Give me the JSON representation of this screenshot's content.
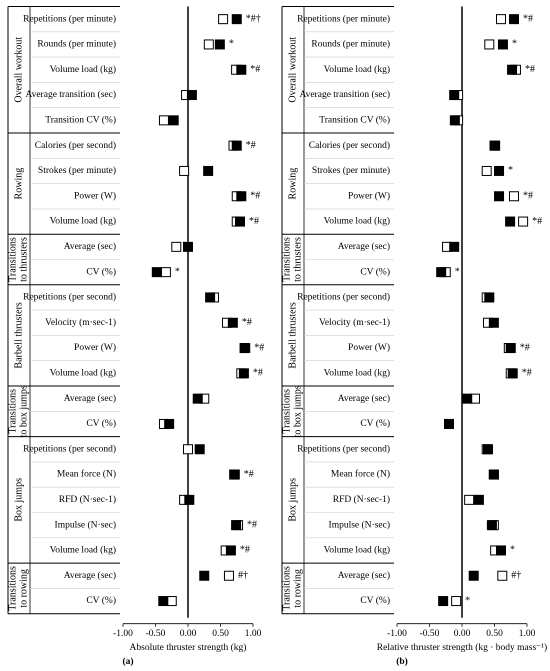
{
  "chart_data": [
    {
      "type": "dot",
      "xlabel": "Absolute thruster strength (kg)",
      "panel_label": "(a)",
      "xlim": [
        -1,
        1
      ],
      "xticks": [
        {
          "value": -1,
          "label": "-1.00"
        },
        {
          "value": -0.5,
          "label": "-0.50"
        },
        {
          "value": 0,
          "label": "0.00"
        },
        {
          "value": 0.5,
          "label": "0.50"
        },
        {
          "value": 1,
          "label": "1.00"
        }
      ],
      "groups": [
        {
          "label": "Overall workout",
          "categories": [
            "Repetitions (per minute)",
            "Rounds (per minute)",
            "Volume load (kg)",
            "Average transition (sec)",
            "Transition CV (%)"
          ]
        },
        {
          "label": "Rowing",
          "categories": [
            "Calories (per second)",
            "Strokes (per minute)",
            "Power (W)",
            "Volume load (kg)"
          ]
        },
        {
          "label": "Transitions to thrusters",
          "categories": [
            "Average (sec)",
            "CV (%)"
          ]
        },
        {
          "label": "Barbell thrusters",
          "categories": [
            "Repetitions (per second)",
            "Velocity (m·sec-1)",
            "Power (W)",
            "Volume load (kg)"
          ]
        },
        {
          "label": "Transitions to box jumps",
          "categories": [
            "Average (sec)",
            "CV (%)"
          ]
        },
        {
          "label": "Box jumps",
          "categories": [
            "Repetitions (per second)",
            "Mean force (N)",
            "RFD (N·sec-1)",
            "Impulse (N·sec)",
            "Volume load (kg)"
          ]
        },
        {
          "label": "Transitions to rowing",
          "categories": [
            "Average (sec)",
            "CV (%)"
          ]
        }
      ],
      "series": [
        {
          "color": "#ffffff",
          "values": [
            0.54,
            0.32,
            0.74,
            -0.03,
            -0.37,
            0.7,
            -0.06,
            0.75,
            0.75,
            -0.18,
            -0.34,
            0.4,
            0.6,
            0.87,
            0.82,
            0.25,
            -0.37,
            0.0,
            0.71,
            -0.06,
            0.77,
            0.58,
            0.63,
            -0.25
          ]
        },
        {
          "color": "#000000",
          "values": [
            0.75,
            0.49,
            0.82,
            0.06,
            -0.22,
            0.75,
            0.31,
            0.82,
            0.8,
            0.0,
            -0.48,
            0.34,
            0.69,
            0.88,
            0.86,
            0.15,
            -0.29,
            0.18,
            0.72,
            0.02,
            0.74,
            0.66,
            0.25,
            -0.38
          ]
        }
      ],
      "annotations": [
        "*#†",
        "*",
        "*#",
        null,
        null,
        "*#",
        null,
        "*#",
        "*#",
        null,
        "*",
        null,
        "*#",
        "*#",
        "*#",
        null,
        null,
        null,
        "*#",
        null,
        "*#",
        "*#",
        "#†",
        null
      ]
    },
    {
      "type": "dot",
      "xlabel": "Relative thruster strength (kg · body mass⁻¹)",
      "panel_label": "(b)",
      "xlim": [
        -1,
        1
      ],
      "xticks": [
        {
          "value": -1,
          "label": "-1.00"
        },
        {
          "value": -0.5,
          "label": "-0.50"
        },
        {
          "value": 0,
          "label": "0.00"
        },
        {
          "value": 0.5,
          "label": "0.50"
        },
        {
          "value": 1,
          "label": "1.00"
        }
      ],
      "groups": [
        {
          "label": "Overall workout",
          "categories": [
            "Repetitions (per minute)",
            "Rounds (per minute)",
            "Volume load (kg)",
            "Average transition (sec)",
            "Transition CV (%)"
          ]
        },
        {
          "label": "Rowing",
          "categories": [
            "Calories (per second)",
            "Strokes (per minute)",
            "Power (W)",
            "Volume load (kg)"
          ]
        },
        {
          "label": "Transitions to thrusters",
          "categories": [
            "Average (sec)",
            "CV (%)"
          ]
        },
        {
          "label": "Barbell thrusters",
          "categories": [
            "Repetitions (per second)",
            "Velocity (m·sec-1)",
            "Power (W)",
            "Volume load (kg)"
          ]
        },
        {
          "label": "Transitions to box jumps",
          "categories": [
            "Average (sec)",
            "CV (%)"
          ]
        },
        {
          "label": "Box jumps",
          "categories": [
            "Repetitions (per second)",
            "Mean force (N)",
            "RFD (N·sec-1)",
            "Impulse (N·sec)",
            "Volume load (kg)"
          ]
        },
        {
          "label": "Transitions to rowing",
          "categories": [
            "Average (sec)",
            "CV (%)"
          ]
        }
      ],
      "series": [
        {
          "color": "#ffffff",
          "values": [
            0.6,
            0.42,
            0.83,
            -0.06,
            -0.06,
            0.5,
            0.38,
            0.8,
            0.94,
            -0.23,
            -0.25,
            0.38,
            0.4,
            0.72,
            0.75,
            0.2,
            -0.2,
            0.38,
            0.49,
            0.11,
            0.49,
            0.51,
            0.62,
            -0.09
          ]
        },
        {
          "color": "#000000",
          "values": [
            0.8,
            0.63,
            0.77,
            -0.12,
            -0.11,
            0.51,
            0.57,
            0.57,
            0.74,
            -0.12,
            -0.32,
            0.42,
            0.49,
            0.75,
            0.78,
            0.08,
            -0.2,
            0.4,
            0.49,
            0.26,
            0.46,
            0.6,
            0.18,
            -0.29
          ]
        }
      ],
      "annotations": [
        "*#",
        "*",
        "*#",
        null,
        null,
        null,
        "*",
        "*#",
        "*#",
        null,
        "*",
        null,
        null,
        "*#",
        "*#",
        null,
        null,
        null,
        null,
        null,
        null,
        "*",
        "#†",
        "*"
      ]
    }
  ]
}
